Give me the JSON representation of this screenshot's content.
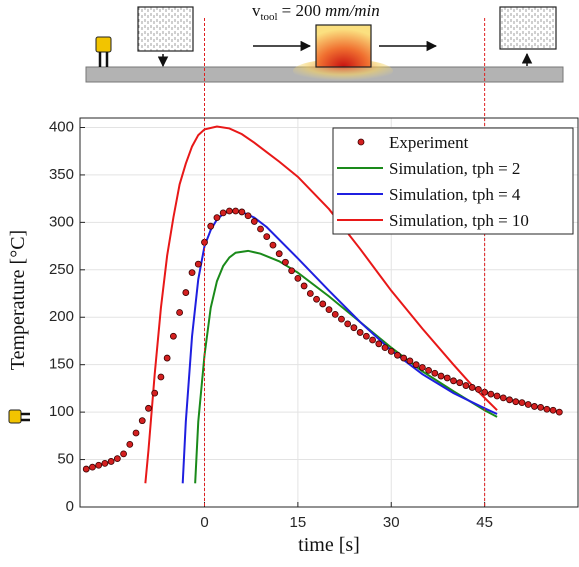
{
  "chart_data": {
    "type": "line",
    "annotation": {
      "symbol": "v",
      "subscript": "tool",
      "text": "= 200",
      "unit": "mm/min"
    },
    "xlabel": "time [s]",
    "ylabel": "Temperature [°C]",
    "xlim": [
      -20,
      60
    ],
    "ylim": [
      0,
      410
    ],
    "xticks": [
      0,
      15,
      30,
      45
    ],
    "yticks": [
      0,
      50,
      100,
      150,
      200,
      250,
      300,
      350,
      400
    ],
    "grid": true,
    "legend": "upper right",
    "reference_lines": [
      0,
      45
    ],
    "reference_color": "#e02020",
    "series": [
      {
        "name": "Experiment",
        "type": "scatter",
        "color": "#d42020",
        "x": [
          -19,
          -18,
          -17,
          -16,
          -15,
          -14,
          -13,
          -12,
          -11,
          -10,
          -9,
          -8,
          -7,
          -6,
          -5,
          -4,
          -3,
          -2,
          -1,
          0,
          1,
          2,
          3,
          4,
          5,
          6,
          7,
          8,
          9,
          10,
          11,
          12,
          13,
          14,
          15,
          16,
          17,
          18,
          19,
          20,
          21,
          22,
          23,
          24,
          25,
          26,
          27,
          28,
          29,
          30,
          31,
          32,
          33,
          34,
          35,
          36,
          37,
          38,
          39,
          40,
          41,
          42,
          43,
          44,
          45,
          46,
          47,
          48,
          49,
          50,
          51,
          52,
          53,
          54,
          55,
          56,
          57
        ],
        "values": [
          40,
          42,
          44,
          46,
          48,
          51,
          56,
          66,
          78,
          91,
          104,
          120,
          137,
          157,
          180,
          205,
          226,
          247,
          256,
          279,
          296,
          305,
          310,
          312,
          312,
          311,
          307,
          301,
          293,
          285,
          276,
          267,
          258,
          249,
          241,
          233,
          225,
          219,
          214,
          208,
          203,
          198,
          193,
          189,
          184,
          180,
          176,
          172,
          168,
          164,
          160,
          157,
          154,
          150,
          147,
          144,
          141,
          138,
          136,
          133,
          131,
          128,
          126,
          124,
          121,
          119,
          117,
          115,
          113,
          111,
          110,
          108,
          106,
          105,
          103,
          102,
          100
        ]
      },
      {
        "name": "Simulation, tph = 2",
        "type": "line",
        "color": "#1a8a1a",
        "x": [
          -1.5,
          -1,
          0,
          1,
          2,
          3,
          4,
          5,
          7,
          9,
          12,
          15,
          20,
          25,
          30,
          35,
          40,
          45,
          47
        ],
        "values": [
          25,
          90,
          160,
          210,
          238,
          254,
          263,
          268,
          270,
          267,
          259,
          247,
          222,
          195,
          168,
          143,
          122,
          102,
          95
        ]
      },
      {
        "name": "Simulation, tph = 4",
        "type": "line",
        "color": "#1f1fe0",
        "x": [
          -3.5,
          -3,
          -2,
          -1,
          0,
          1,
          2,
          3,
          4,
          5,
          6,
          8,
          10,
          15,
          20,
          25,
          30,
          35,
          40,
          45,
          47
        ],
        "values": [
          25,
          90,
          180,
          240,
          275,
          292,
          303,
          309,
          312,
          312,
          311,
          305,
          295,
          262,
          228,
          195,
          165,
          140,
          120,
          104,
          98
        ]
      },
      {
        "name": "Simulation, tph = 10",
        "type": "line",
        "color": "#e81818",
        "x": [
          -9.5,
          -9,
          -8,
          -7,
          -6,
          -5,
          -4,
          -3,
          -2,
          -1,
          0,
          2,
          4,
          6,
          8,
          10,
          12,
          15,
          20,
          25,
          30,
          35,
          40,
          43,
          45,
          47
        ],
        "values": [
          25,
          60,
          140,
          210,
          265,
          305,
          340,
          362,
          380,
          392,
          398,
          401,
          399,
          393,
          384,
          374,
          364,
          348,
          314,
          272,
          228,
          188,
          150,
          128,
          115,
          102
        ]
      }
    ]
  }
}
